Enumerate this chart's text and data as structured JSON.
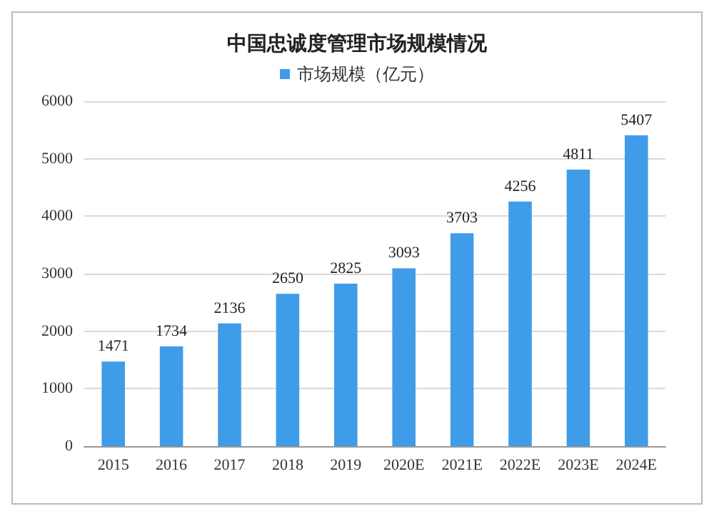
{
  "chart_data": {
    "type": "bar",
    "title": "中国忠诚度管理市场规模情况",
    "categories": [
      "2015",
      "2016",
      "2017",
      "2018",
      "2019",
      "2020E",
      "2021E",
      "2022E",
      "2023E",
      "2024E"
    ],
    "series": [
      {
        "name": "市场规模（亿元）",
        "color": "#3f9ce8",
        "values": [
          1471,
          1734,
          2136,
          2650,
          2825,
          3093,
          3703,
          4256,
          4811,
          5407
        ]
      }
    ],
    "ylim": [
      0,
      6000
    ],
    "yticks": [
      0,
      1000,
      2000,
      3000,
      4000,
      5000,
      6000
    ],
    "grid": "y",
    "legend": "top",
    "data_labels": true
  }
}
